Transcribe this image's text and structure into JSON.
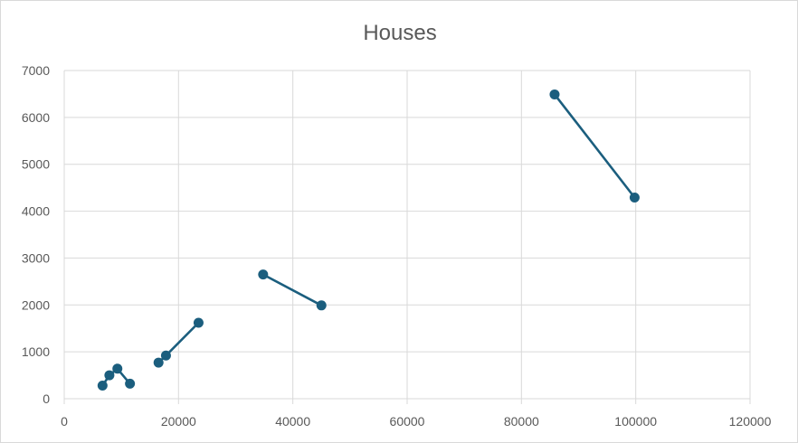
{
  "chart_data": {
    "type": "scatter",
    "title": "Houses",
    "xlabel": "",
    "ylabel": "",
    "xlim": [
      0,
      120000
    ],
    "ylim": [
      0,
      7000
    ],
    "x_ticks": [
      0,
      20000,
      40000,
      60000,
      80000,
      100000,
      120000
    ],
    "y_ticks": [
      0,
      1000,
      2000,
      3000,
      4000,
      5000,
      6000,
      7000
    ],
    "grid": true,
    "legend": "none",
    "color": "#1b5e7e",
    "segments": [
      [
        [
          6700,
          280
        ],
        [
          7900,
          500
        ],
        [
          9300,
          640
        ],
        [
          11500,
          320
        ]
      ],
      [
        [
          16500,
          770
        ],
        [
          17800,
          920
        ],
        [
          23500,
          1620
        ]
      ],
      [
        [
          34800,
          2650
        ],
        [
          45000,
          1990
        ]
      ],
      [
        [
          85800,
          6490
        ],
        [
          99800,
          4290
        ]
      ]
    ]
  }
}
